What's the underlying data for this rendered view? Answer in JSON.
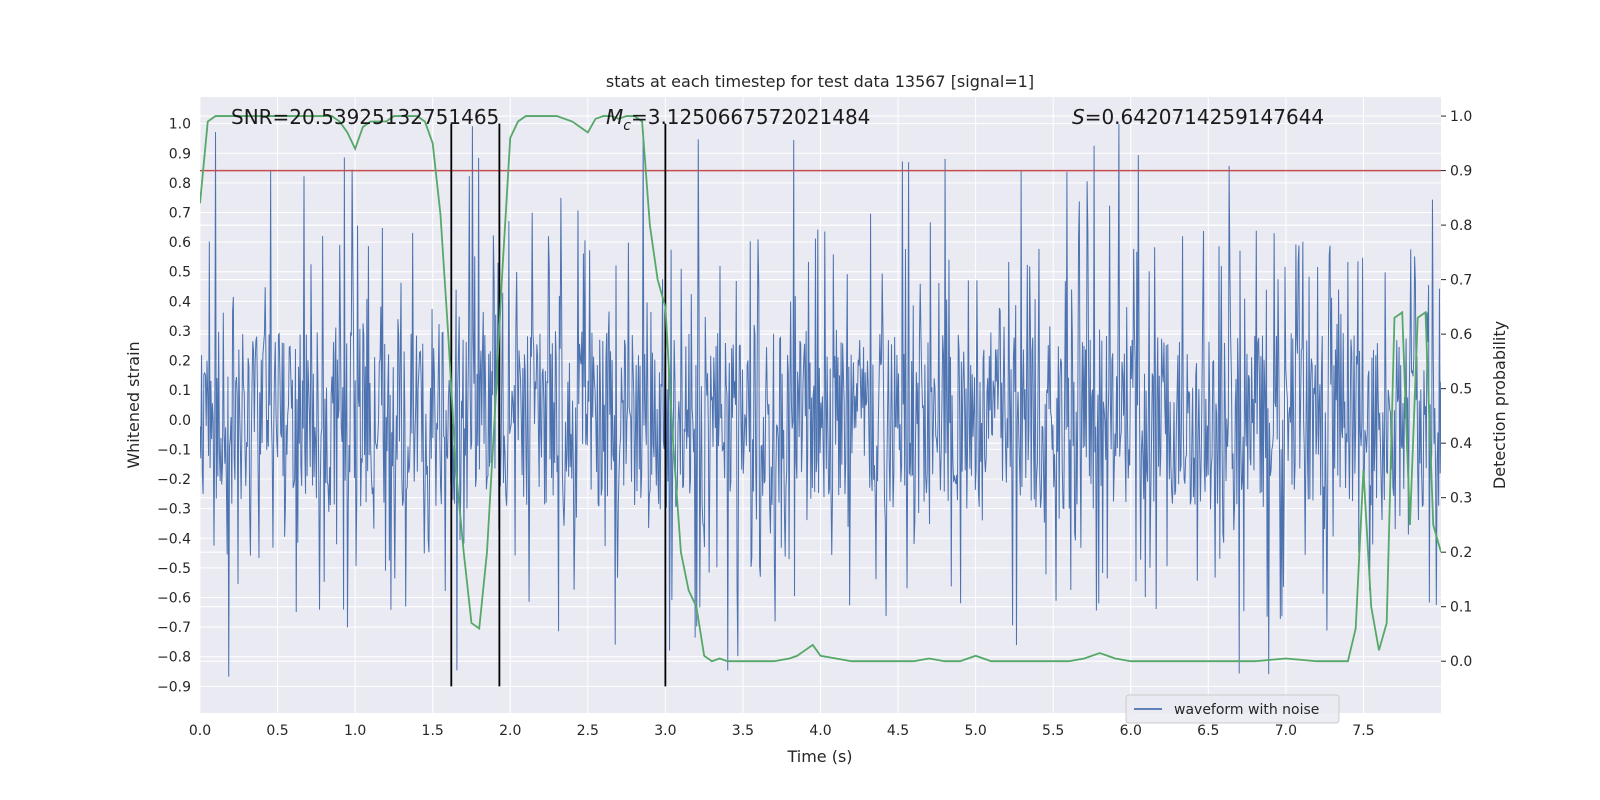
{
  "chart_data": {
    "type": "line",
    "title": "stats at each timestep for test data 13567 [signal=1]",
    "xlabel": "Time (s)",
    "ylabel_left": "Whitened strain",
    "ylabel_right": "Detection probability",
    "xlim": [
      0.0,
      8.0
    ],
    "ylim_left": [
      -0.99,
      1.09
    ],
    "ylim_right": [
      -0.095,
      1.035
    ],
    "xticks": [
      "0.0",
      "0.5",
      "1.0",
      "1.5",
      "2.0",
      "2.5",
      "3.0",
      "3.5",
      "4.0",
      "4.5",
      "5.0",
      "5.5",
      "6.0",
      "6.5",
      "7.0",
      "7.5"
    ],
    "yticks_left": [
      "1.0",
      "0.9",
      "0.8",
      "0.7",
      "0.6",
      "0.5",
      "0.4",
      "0.3",
      "0.2",
      "0.1",
      "0.0",
      "−0.1",
      "−0.2",
      "−0.3",
      "−0.4",
      "−0.5",
      "−0.6",
      "−0.7",
      "−0.8",
      "−0.9"
    ],
    "yticks_right": [
      "1.0",
      "0.9",
      "0.8",
      "0.7",
      "0.6",
      "0.5",
      "0.4",
      "0.3",
      "0.2",
      "0.1",
      "0.0"
    ],
    "grid": true,
    "legend": {
      "position": "lower-right",
      "entries": [
        "waveform with noise"
      ]
    },
    "annotations": {
      "snr": "SNR=20.53925132751465",
      "mc_symbol": "M",
      "mc_sub": "c",
      "mc_value": "=3.1250667572021484",
      "s_symbol": "S",
      "s_value": "=0.6420714259147644"
    },
    "threshold": {
      "axis": "right",
      "value": 0.9
    },
    "vertical_lines": [
      1.62,
      1.93,
      3.0
    ],
    "waveform": {
      "name": "waveform with noise",
      "core_band": [
        -0.3,
        0.3
      ],
      "peak_envelope": [
        -0.87,
        1.0
      ],
      "samples_approx": 1600
    },
    "detection_probability": {
      "x": [
        0.0,
        0.05,
        0.1,
        0.15,
        0.2,
        0.3,
        0.4,
        0.5,
        0.6,
        0.7,
        0.8,
        0.85,
        0.9,
        0.95,
        1.0,
        1.05,
        1.1,
        1.15,
        1.2,
        1.25,
        1.3,
        1.35,
        1.4,
        1.45,
        1.5,
        1.55,
        1.6,
        1.65,
        1.7,
        1.75,
        1.8,
        1.85,
        1.9,
        1.95,
        2.0,
        2.05,
        2.1,
        2.2,
        2.3,
        2.4,
        2.45,
        2.5,
        2.55,
        2.6,
        2.65,
        2.7,
        2.75,
        2.8,
        2.85,
        2.9,
        2.95,
        3.0,
        3.05,
        3.1,
        3.15,
        3.2,
        3.25,
        3.3,
        3.35,
        3.4,
        3.5,
        3.6,
        3.7,
        3.8,
        3.85,
        3.9,
        3.95,
        4.0,
        4.1,
        4.2,
        4.3,
        4.4,
        4.5,
        4.6,
        4.7,
        4.8,
        4.9,
        4.95,
        5.0,
        5.05,
        5.1,
        5.2,
        5.4,
        5.6,
        5.7,
        5.8,
        5.85,
        5.9,
        6.0,
        6.1,
        6.2,
        6.4,
        6.6,
        6.8,
        7.0,
        7.2,
        7.4,
        7.45,
        7.5,
        7.55,
        7.6,
        7.65,
        7.7,
        7.75,
        7.8,
        7.85,
        7.9,
        7.95,
        8.0
      ],
      "values": [
        0.84,
        0.99,
        1.0,
        1.0,
        1.0,
        1.0,
        1.0,
        1.0,
        1.0,
        1.0,
        1.0,
        1.0,
        0.99,
        0.97,
        0.94,
        0.98,
        0.99,
        0.99,
        0.99,
        1.0,
        1.0,
        1.0,
        1.0,
        0.99,
        0.95,
        0.82,
        0.6,
        0.35,
        0.2,
        0.07,
        0.06,
        0.2,
        0.45,
        0.72,
        0.96,
        0.99,
        1.0,
        1.0,
        1.0,
        0.99,
        0.98,
        0.97,
        0.995,
        1.0,
        1.0,
        0.995,
        1.0,
        1.0,
        0.99,
        0.8,
        0.7,
        0.65,
        0.4,
        0.2,
        0.13,
        0.1,
        0.01,
        0.0,
        0.005,
        0.0,
        0.0,
        0.0,
        0.0,
        0.005,
        0.01,
        0.02,
        0.03,
        0.01,
        0.005,
        0.0,
        0.0,
        0.0,
        0.0,
        0.0,
        0.005,
        0.0,
        0.0,
        0.005,
        0.01,
        0.005,
        0.0,
        0.0,
        0.0,
        0.0,
        0.005,
        0.015,
        0.01,
        0.005,
        0.0,
        0.0,
        0.0,
        0.0,
        0.0,
        0.0,
        0.005,
        0.0,
        0.0,
        0.06,
        0.35,
        0.1,
        0.02,
        0.07,
        0.63,
        0.64,
        0.25,
        0.63,
        0.64,
        0.25,
        0.2
      ]
    },
    "colors": {
      "waveform": "#4c72b0",
      "probability": "#55a868",
      "threshold": "#c44e52",
      "vertical_lines": "#000000",
      "axes_background": "#eaeaf2",
      "grid": "#ffffff"
    }
  }
}
